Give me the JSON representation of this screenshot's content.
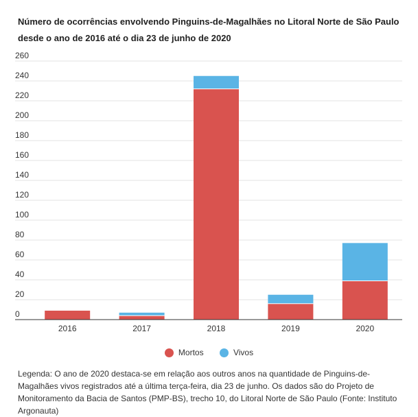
{
  "title": "Número de ocorrências envolvendo Pinguins-de-Magalhães no Litoral Norte de São Paulo desde o ano de 2016 até o dia 23 de junho de 2020",
  "chart_data": {
    "type": "bar",
    "stacked": true,
    "title": "Número de ocorrências envolvendo Pinguins-de-Magalhães no Litoral Norte de São Paulo desde o ano de 2016 até o dia 23 de junho de 2020",
    "categories": [
      "2016",
      "2017",
      "2018",
      "2019",
      "2020"
    ],
    "series": [
      {
        "name": "Mortos",
        "color": "#d9534f",
        "values": [
          9,
          4,
          232,
          16,
          39
        ]
      },
      {
        "name": "Vivos",
        "color": "#5ab4e5",
        "values": [
          0,
          3,
          13,
          9,
          38
        ]
      }
    ],
    "yticks": [
      "0",
      "20",
      "40",
      "60",
      "80",
      "100",
      "120",
      "140",
      "160",
      "180",
      "200",
      "220",
      "240",
      "260"
    ],
    "ylim": [
      0,
      260
    ],
    "grid": true,
    "legend_position": "bottom-center"
  },
  "legend": {
    "mortos": "Mortos",
    "vivos": "Vivos"
  },
  "caption": "Legenda: O ano de 2020 destaca-se em relação aos outros anos na quantidade de Pinguins-de-Magalhães vivos registrados até a última terça-feira, dia 23 de junho. Os dados são do Projeto de Monitoramento da Bacia de Santos (PMP-BS), trecho 10, do Litoral Norte de São Paulo (Fonte: Instituto Argonauta)"
}
